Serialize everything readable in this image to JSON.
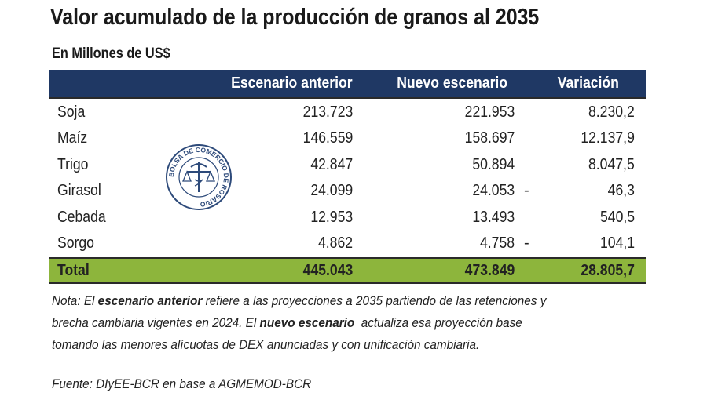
{
  "title": "Valor acumulado de la producción de granos al 2035",
  "subtitle": "En Millones de US$",
  "chart_data": {
    "type": "table",
    "columns": [
      "",
      "Escenario anterior",
      "Nuevo escenario",
      "Variación"
    ],
    "rows": [
      {
        "label": "Soja",
        "anterior": "213.723",
        "nuevo": "221.953",
        "neg": "",
        "variacion": "8.230,2"
      },
      {
        "label": "Maíz",
        "anterior": "146.559",
        "nuevo": "158.697",
        "neg": "",
        "variacion": "12.137,9"
      },
      {
        "label": "Trigo",
        "anterior": "42.847",
        "nuevo": "50.894",
        "neg": "",
        "variacion": "8.047,5"
      },
      {
        "label": "Girasol",
        "anterior": "24.099",
        "nuevo": "24.053",
        "neg": "-",
        "variacion": "46,3"
      },
      {
        "label": "Cebada",
        "anterior": "12.953",
        "nuevo": "13.493",
        "neg": "",
        "variacion": "540,5"
      },
      {
        "label": "Sorgo",
        "anterior": "4.862",
        "nuevo": "4.758",
        "neg": "-",
        "variacion": "104,1"
      }
    ],
    "total": {
      "label": "Total",
      "anterior": "445.043",
      "nuevo": "473.849",
      "variacion": "28.805,7"
    }
  },
  "note": {
    "prefix": "Nota: El ",
    "bold1": "escenario anterior",
    "mid1": " refiere a las proyecciones a 2035 partiendo de las retenciones y",
    "line2a": "brecha cambiaria vigentes en 2024. El ",
    "bold2": "nuevo escenario",
    "line2b": "  actualiza esa proyección base",
    "line3": "tomando las menores alícuotas de DEX anunciadas y con unificación cambiaria."
  },
  "source": "Fuente: DIyEE-BCR en base a AGMEMOD-BCR",
  "logo_text": "BOLSA DE COMERCIO DE ROSARIO",
  "colors": {
    "header": "#1f3864",
    "total": "#8db53c",
    "logo": "#2d4a7a"
  }
}
